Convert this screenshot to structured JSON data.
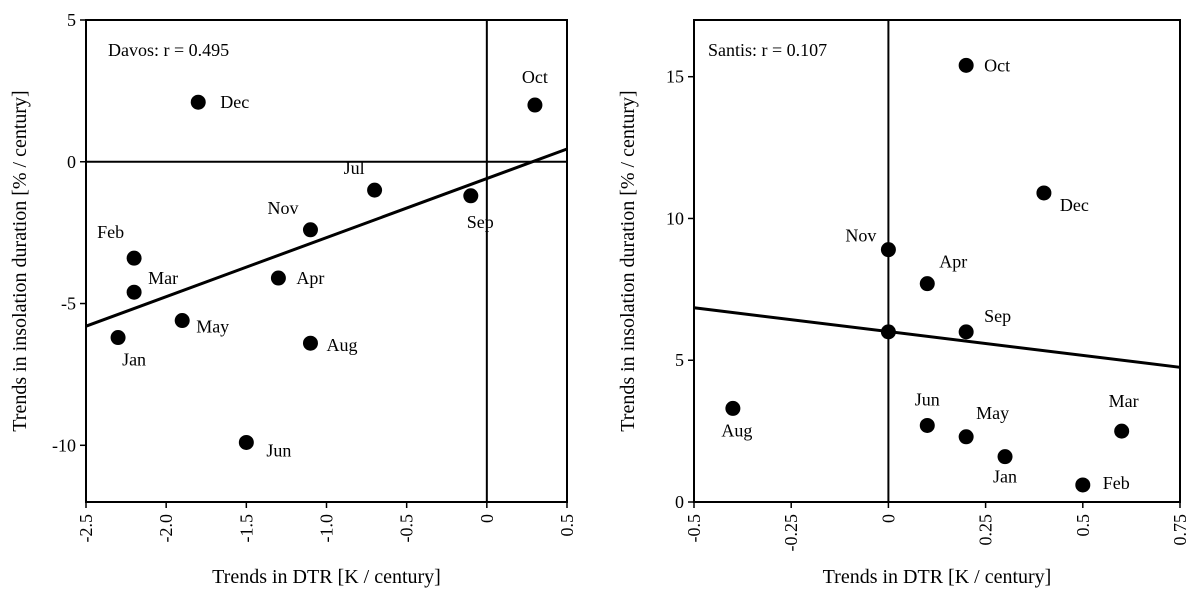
{
  "chart_data": [
    {
      "type": "scatter",
      "title": "",
      "annotation": "Davos:  r = 0.495",
      "xlabel": "Trends in DTR [K / century]",
      "ylabel": "Trends in insolation duration [% / century]",
      "xlim": [
        -2.5,
        0.5
      ],
      "ylim": [
        -12,
        5
      ],
      "xticks": [
        -2.5,
        -2.0,
        -1.5,
        -1.0,
        -0.5,
        0,
        0.5
      ],
      "xtick_labels": [
        "-2.5",
        "-2.0",
        "-1.5",
        "-1.0",
        "-0.5",
        "0",
        "0.5"
      ],
      "yticks": [
        -10,
        -5,
        0,
        5
      ],
      "ytick_labels": [
        "-10",
        "-5",
        "0",
        "5"
      ],
      "reference_lines": {
        "x": 0,
        "y": 0
      },
      "trend_line": {
        "x": [
          -2.5,
          0.5
        ],
        "y": [
          -5.8,
          0.45
        ]
      },
      "points": [
        {
          "label": "Dec",
          "x": -1.8,
          "y": 2.1
        },
        {
          "label": "Oct",
          "x": 0.3,
          "y": 2.0
        },
        {
          "label": "Jul",
          "x": -0.7,
          "y": -1.0
        },
        {
          "label": "Sep",
          "x": -0.1,
          "y": -1.2
        },
        {
          "label": "Nov",
          "x": -1.1,
          "y": -2.4
        },
        {
          "label": "Feb",
          "x": -2.2,
          "y": -3.4
        },
        {
          "label": "Mar",
          "x": -2.2,
          "y": -4.6
        },
        {
          "label": "Apr",
          "x": -1.3,
          "y": -4.1
        },
        {
          "label": "May",
          "x": -1.9,
          "y": -5.6
        },
        {
          "label": "Jan",
          "x": -2.3,
          "y": -6.2
        },
        {
          "label": "Aug",
          "x": -1.1,
          "y": -6.4
        },
        {
          "label": "Jun",
          "x": -1.5,
          "y": -9.9
        }
      ]
    },
    {
      "type": "scatter",
      "title": "",
      "annotation": "Santis:  r = 0.107",
      "xlabel": "Trends in DTR [K / century]",
      "ylabel": "Trends in insolation duration [% / century]",
      "xlim": [
        -0.5,
        0.75
      ],
      "ylim": [
        0,
        17
      ],
      "xticks": [
        -0.5,
        -0.25,
        0,
        0.25,
        0.5,
        0.75
      ],
      "xtick_labels": [
        "-0.5",
        "-0.25",
        "0",
        "0.25",
        "0.5",
        "0.75"
      ],
      "yticks": [
        0,
        5,
        10,
        15
      ],
      "ytick_labels": [
        "0",
        "5",
        "10",
        "15"
      ],
      "reference_lines": {
        "x": 0
      },
      "trend_line": {
        "x": [
          -0.5,
          0.75
        ],
        "y": [
          6.85,
          4.75
        ]
      },
      "points": [
        {
          "label": "Oct",
          "x": 0.2,
          "y": 15.4
        },
        {
          "label": "Dec",
          "x": 0.4,
          "y": 10.9
        },
        {
          "label": "Nov",
          "x": 0.0,
          "y": 8.9
        },
        {
          "label": "Apr",
          "x": 0.1,
          "y": 7.7
        },
        {
          "label": "",
          "x": 0.0,
          "y": 6.0
        },
        {
          "label": "Sep",
          "x": 0.2,
          "y": 6.0
        },
        {
          "label": "Aug",
          "x": -0.4,
          "y": 3.3
        },
        {
          "label": "Jun",
          "x": 0.1,
          "y": 2.7
        },
        {
          "label": "May",
          "x": 0.2,
          "y": 2.3
        },
        {
          "label": "Mar",
          "x": 0.6,
          "y": 2.5
        },
        {
          "label": "Jan",
          "x": 0.3,
          "y": 1.6
        },
        {
          "label": "Feb",
          "x": 0.5,
          "y": 0.6
        }
      ]
    }
  ]
}
